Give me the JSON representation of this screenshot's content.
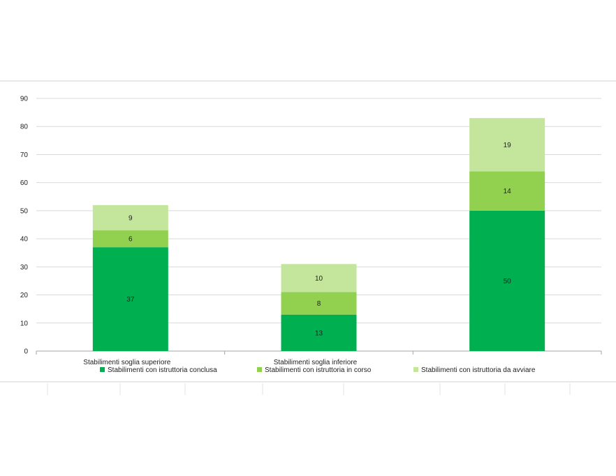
{
  "chart_data": {
    "type": "bar",
    "stacked": true,
    "categories": [
      "Stabilimenti soglia superiore",
      "Stabilimenti soglia inferiore",
      ""
    ],
    "series": [
      {
        "name": "Stabilimenti con istruttoria conclusa",
        "values": [
          37,
          13,
          50
        ],
        "color": "#00b050"
      },
      {
        "name": "Stabilimenti con istruttoria in corso",
        "values": [
          6,
          8,
          14
        ],
        "color": "#92d050"
      },
      {
        "name": "Stabilimenti con istruttoria da avviare",
        "values": [
          9,
          10,
          19
        ],
        "color": "#c4e59c"
      }
    ],
    "ylim": [
      0,
      90
    ],
    "yticks": [
      0,
      10,
      20,
      30,
      40,
      50,
      60,
      70,
      80,
      90
    ],
    "grid": true,
    "legend": "bottom",
    "data_labels": true
  }
}
